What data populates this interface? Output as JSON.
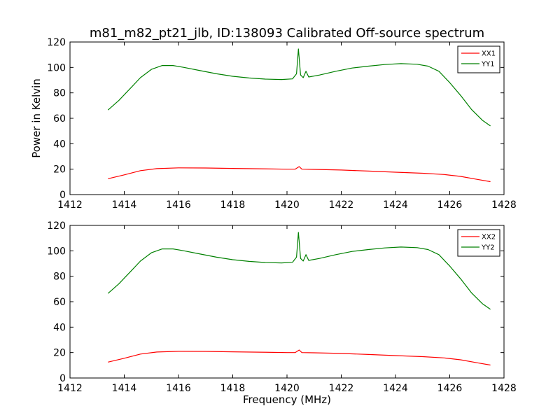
{
  "chart_data": [
    {
      "type": "line",
      "title": "m81_m82_pt21_jlb, ID:138093 Calibrated Off-source spectrum",
      "xlabel": "",
      "ylabel": "Power in Kelvin",
      "xlim": [
        1412,
        1428
      ],
      "ylim": [
        0,
        120
      ],
      "xticks": [
        1412,
        1414,
        1416,
        1418,
        1420,
        1422,
        1424,
        1426,
        1428
      ],
      "yticks": [
        0,
        20,
        40,
        60,
        80,
        100,
        120
      ],
      "legend_position": "top-right",
      "series": [
        {
          "name": "XX1",
          "color": "#ff0000",
          "points": [
            [
              1413.4,
              12.5
            ],
            [
              1414.0,
              15.5
            ],
            [
              1414.6,
              18.8
            ],
            [
              1415.2,
              20.4
            ],
            [
              1416.0,
              21.0
            ],
            [
              1417.0,
              20.9
            ],
            [
              1418.0,
              20.6
            ],
            [
              1419.0,
              20.3
            ],
            [
              1420.0,
              20.0
            ],
            [
              1420.3,
              20.0
            ],
            [
              1420.45,
              22.0
            ],
            [
              1420.55,
              20.0
            ],
            [
              1421.0,
              19.8
            ],
            [
              1422.0,
              19.3
            ],
            [
              1423.0,
              18.5
            ],
            [
              1424.0,
              17.6
            ],
            [
              1425.0,
              16.8
            ],
            [
              1425.8,
              15.8
            ],
            [
              1426.4,
              14.3
            ],
            [
              1427.0,
              12.0
            ],
            [
              1427.5,
              10.2
            ]
          ]
        },
        {
          "name": "YY1",
          "color": "#008000",
          "points": [
            [
              1413.4,
              66.5
            ],
            [
              1413.8,
              74.0
            ],
            [
              1414.2,
              83.0
            ],
            [
              1414.6,
              92.0
            ],
            [
              1415.0,
              98.5
            ],
            [
              1415.4,
              101.5
            ],
            [
              1415.8,
              101.5
            ],
            [
              1416.2,
              100.0
            ],
            [
              1416.8,
              97.5
            ],
            [
              1417.4,
              95.0
            ],
            [
              1418.0,
              93.0
            ],
            [
              1418.6,
              91.7
            ],
            [
              1419.2,
              90.8
            ],
            [
              1419.8,
              90.5
            ],
            [
              1420.2,
              91.0
            ],
            [
              1420.35,
              95.0
            ],
            [
              1420.42,
              114.5
            ],
            [
              1420.5,
              94.0
            ],
            [
              1420.6,
              92.0
            ],
            [
              1420.7,
              97.0
            ],
            [
              1420.8,
              92.5
            ],
            [
              1421.2,
              94.0
            ],
            [
              1421.8,
              97.0
            ],
            [
              1422.4,
              99.5
            ],
            [
              1423.0,
              101.0
            ],
            [
              1423.6,
              102.3
            ],
            [
              1424.2,
              103.0
            ],
            [
              1424.8,
              102.5
            ],
            [
              1425.2,
              101.0
            ],
            [
              1425.6,
              97.0
            ],
            [
              1426.0,
              88.0
            ],
            [
              1426.4,
              78.0
            ],
            [
              1426.8,
              67.0
            ],
            [
              1427.2,
              58.5
            ],
            [
              1427.5,
              54.0
            ]
          ]
        }
      ]
    },
    {
      "type": "line",
      "title": "",
      "xlabel": "Frequency (MHz)",
      "ylabel": "",
      "xlim": [
        1412,
        1428
      ],
      "ylim": [
        0,
        120
      ],
      "xticks": [
        1412,
        1414,
        1416,
        1418,
        1420,
        1422,
        1424,
        1426,
        1428
      ],
      "yticks": [
        0,
        20,
        40,
        60,
        80,
        100,
        120
      ],
      "legend_position": "top-right",
      "series": [
        {
          "name": "XX2",
          "color": "#ff0000",
          "points": [
            [
              1413.4,
              12.5
            ],
            [
              1414.0,
              15.5
            ],
            [
              1414.6,
              18.8
            ],
            [
              1415.2,
              20.4
            ],
            [
              1416.0,
              21.0
            ],
            [
              1417.0,
              20.9
            ],
            [
              1418.0,
              20.6
            ],
            [
              1419.0,
              20.3
            ],
            [
              1420.0,
              20.0
            ],
            [
              1420.3,
              20.0
            ],
            [
              1420.45,
              22.0
            ],
            [
              1420.55,
              20.0
            ],
            [
              1421.0,
              19.8
            ],
            [
              1422.0,
              19.3
            ],
            [
              1423.0,
              18.5
            ],
            [
              1424.0,
              17.6
            ],
            [
              1425.0,
              16.8
            ],
            [
              1425.8,
              15.8
            ],
            [
              1426.4,
              14.3
            ],
            [
              1427.0,
              12.0
            ],
            [
              1427.5,
              10.2
            ]
          ]
        },
        {
          "name": "YY2",
          "color": "#008000",
          "points": [
            [
              1413.4,
              66.5
            ],
            [
              1413.8,
              74.0
            ],
            [
              1414.2,
              83.0
            ],
            [
              1414.6,
              92.0
            ],
            [
              1415.0,
              98.5
            ],
            [
              1415.4,
              101.5
            ],
            [
              1415.8,
              101.5
            ],
            [
              1416.2,
              100.0
            ],
            [
              1416.8,
              97.5
            ],
            [
              1417.4,
              95.0
            ],
            [
              1418.0,
              93.0
            ],
            [
              1418.6,
              91.7
            ],
            [
              1419.2,
              90.8
            ],
            [
              1419.8,
              90.5
            ],
            [
              1420.2,
              91.0
            ],
            [
              1420.35,
              95.0
            ],
            [
              1420.42,
              114.5
            ],
            [
              1420.5,
              94.0
            ],
            [
              1420.6,
              92.0
            ],
            [
              1420.7,
              97.0
            ],
            [
              1420.8,
              92.5
            ],
            [
              1421.2,
              94.0
            ],
            [
              1421.8,
              97.0
            ],
            [
              1422.4,
              99.5
            ],
            [
              1423.0,
              101.0
            ],
            [
              1423.6,
              102.3
            ],
            [
              1424.2,
              103.0
            ],
            [
              1424.8,
              102.5
            ],
            [
              1425.2,
              101.0
            ],
            [
              1425.6,
              97.0
            ],
            [
              1426.0,
              88.0
            ],
            [
              1426.4,
              78.0
            ],
            [
              1426.8,
              67.0
            ],
            [
              1427.2,
              58.5
            ],
            [
              1427.5,
              54.0
            ]
          ]
        }
      ]
    }
  ]
}
